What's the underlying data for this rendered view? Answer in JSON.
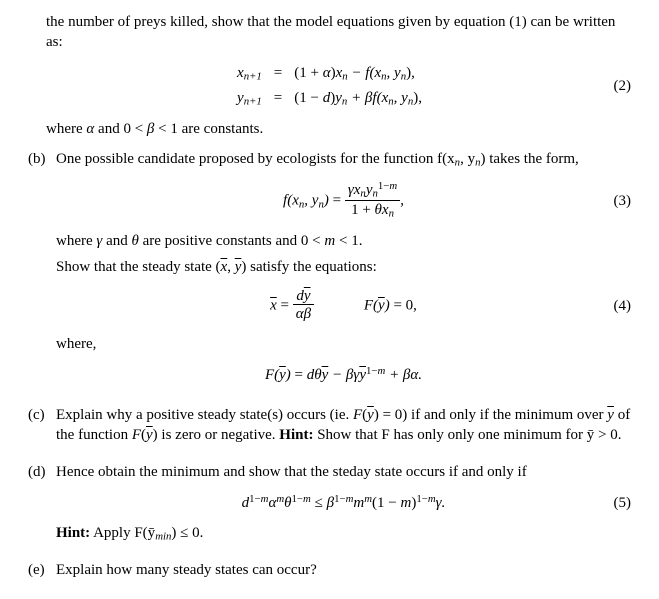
{
  "intro_tail": "the number of preys killed, show that the model equations given by equation (1) can be written as:",
  "eq2": {
    "l1_lhs": "x",
    "l1_sub": "n+1",
    "eq": "=",
    "l1_rhs": "(1 + α)x",
    "l1_rhs_sub": "n",
    "l1_rhs2": " − f(x",
    "l1_rhs2_sub": "n",
    "l1_rhs3": ", y",
    "l1_rhs3_sub": "n",
    "l1_rhs4": "),",
    "l2_lhs": "y",
    "l2_sub": "n+1",
    "l2_rhs": "(1 − d)y",
    "l2_rhs_sub": "n",
    "l2_rhs2": " + βf(x",
    "l2_rhs2_sub": "n",
    "l2_rhs3": ", y",
    "l2_rhs3_sub": "n",
    "l2_rhs4": "),",
    "num": "(2)"
  },
  "intro_after2": "where α and 0 < β < 1 are constants.",
  "b": {
    "label": "(b)",
    "text1": "One possible candidate proposed by ecologists for the function f(x",
    "t1s1": "n",
    "t1m": ", y",
    "t1s2": "n",
    "t1end": ") takes the form,",
    "eq3_num": "(3)",
    "after3_a": "where γ and θ are positive constants and 0 < m < 1.",
    "after3_b": "Show that the steady state (",
    "after3_b2": ") satisfy the equations:",
    "eq4_num": "(4)",
    "where": "where,",
    "Fdef": "F(ȳ) = dθȳ − βγȳ",
    "Fdef_sup": "1−m",
    "Fdef_tail": " + βα."
  },
  "c": {
    "label": "(c)",
    "text": "Explain why a positive steady state(s) occurs (ie. F(ȳ) = 0) if and only if the minimum over ȳ of the function F(ȳ) is zero or negative. ",
    "hint_lbl": "Hint:",
    "hint": " Show that F has only only one minimum for ȳ > 0."
  },
  "d": {
    "label": "(d)",
    "text": "Hence obtain the minimum and show that the steday state occurs if and only if",
    "eq5_num": "(5)",
    "hint_lbl": "Hint:",
    "hint": " Apply F(ȳ",
    "hint_sub": "min",
    "hint_tail": ") ≤ 0."
  },
  "e": {
    "label": "(e)",
    "text": "Explain how many steady states can occur?"
  }
}
